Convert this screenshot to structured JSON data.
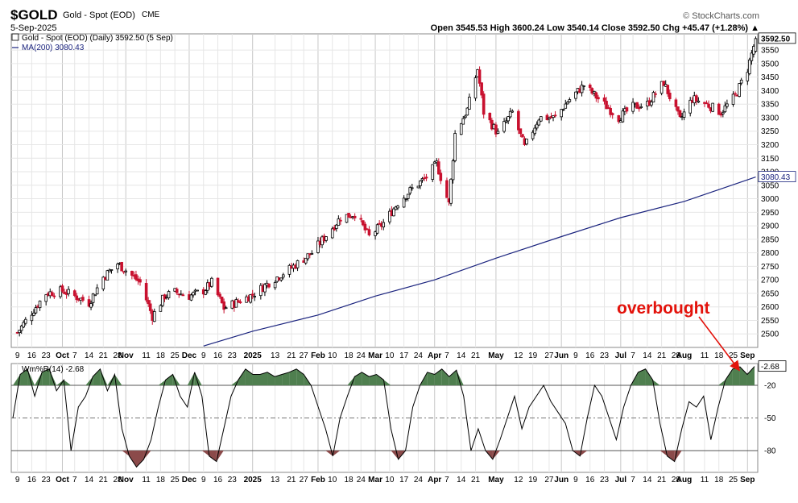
{
  "header": {
    "ticker": "$GOLD",
    "company": "Gold - Spot (EOD)",
    "exchange": "CME",
    "date": "5-Sep-2025",
    "brand": "© StockCharts.com",
    "ohlc": "Open 3545.53  High 3600.24  Low 3540.14  Close 3592.50  Chg +45.47 (+1.28%) ▲"
  },
  "legend": {
    "price": "Gold - Spot (EOD) (Daily) 3592.50 (5 Sep)",
    "ma": "MA(200) 3080.43",
    "wr": "Wm%R(14) -2.68"
  },
  "annotation": "overbought",
  "colors": {
    "up": "#000000",
    "down": "#c8102e",
    "ma": "#1a237e",
    "ob_fill": "#4f7f4f",
    "os_fill": "#8b4a4a",
    "arrow": "#e3120b"
  },
  "chart_data": [
    {
      "type": "candlestick",
      "title": "Gold - Spot (EOD) (Daily)",
      "ylim": [
        2450,
        3610
      ],
      "y_ticks": [
        2500,
        2550,
        2600,
        2650,
        2700,
        2750,
        2800,
        2850,
        2900,
        2950,
        3000,
        3050,
        3100,
        3150,
        3200,
        3250,
        3300,
        3350,
        3400,
        3450,
        3500,
        3550
      ],
      "x_tick_labels": [
        "9",
        "16",
        "23",
        "Oct",
        "7",
        "14",
        "21",
        "28",
        "Nov",
        "11",
        "18",
        "25",
        "Dec",
        "9",
        "16",
        "23",
        "2025",
        "13",
        "21",
        "27",
        "Feb",
        "10",
        "18",
        "24",
        "Mar",
        "10",
        "17",
        "24",
        "Apr",
        "7",
        "14",
        "21",
        "May",
        "12",
        "19",
        "27",
        "Jun",
        "9",
        "16",
        "23",
        "Jul",
        "7",
        "14",
        "21",
        "28",
        "Aug",
        "11",
        "18",
        "25",
        "Sep"
      ],
      "last_price": 3592.5,
      "closes_anchor": [
        [
          "2024-09-09",
          2505
        ],
        [
          "2024-09-16",
          2580
        ],
        [
          "2024-09-23",
          2650
        ],
        [
          "2024-10-01",
          2660
        ],
        [
          "2024-10-07",
          2640
        ],
        [
          "2024-10-14",
          2615
        ],
        [
          "2024-10-21",
          2710
        ],
        [
          "2024-10-28",
          2760
        ],
        [
          "2024-11-01",
          2735
        ],
        [
          "2024-11-08",
          2690
        ],
        [
          "2024-11-14",
          2565
        ],
        [
          "2024-11-20",
          2640
        ],
        [
          "2024-11-25",
          2655
        ],
        [
          "2024-12-02",
          2640
        ],
        [
          "2024-12-09",
          2660
        ],
        [
          "2024-12-13",
          2690
        ],
        [
          "2024-12-19",
          2595
        ],
        [
          "2024-12-26",
          2620
        ],
        [
          "2025-01-02",
          2645
        ],
        [
          "2025-01-10",
          2690
        ],
        [
          "2025-01-21",
          2745
        ],
        [
          "2025-01-31",
          2800
        ],
        [
          "2025-02-07",
          2865
        ],
        [
          "2025-02-14",
          2930
        ],
        [
          "2025-02-21",
          2945
        ],
        [
          "2025-02-28",
          2860
        ],
        [
          "2025-03-07",
          2910
        ],
        [
          "2025-03-14",
          2985
        ],
        [
          "2025-03-20",
          3030
        ],
        [
          "2025-03-28",
          3080
        ],
        [
          "2025-04-02",
          3130
        ],
        [
          "2025-04-08",
          2980
        ],
        [
          "2025-04-11",
          3240
        ],
        [
          "2025-04-17",
          3330
        ],
        [
          "2025-04-22",
          3480
        ],
        [
          "2025-04-25",
          3320
        ],
        [
          "2025-05-02",
          3240
        ],
        [
          "2025-05-09",
          3320
        ],
        [
          "2025-05-15",
          3190
        ],
        [
          "2025-05-22",
          3300
        ],
        [
          "2025-05-30",
          3300
        ],
        [
          "2025-06-05",
          3360
        ],
        [
          "2025-06-13",
          3420
        ],
        [
          "2025-06-20",
          3370
        ],
        [
          "2025-06-30",
          3300
        ],
        [
          "2025-07-07",
          3340
        ],
        [
          "2025-07-14",
          3350
        ],
        [
          "2025-07-22",
          3430
        ],
        [
          "2025-07-30",
          3290
        ],
        [
          "2025-08-05",
          3370
        ],
        [
          "2025-08-12",
          3350
        ],
        [
          "2025-08-19",
          3320
        ],
        [
          "2025-08-26",
          3380
        ],
        [
          "2025-09-01",
          3480
        ],
        [
          "2025-09-05",
          3592.5
        ]
      ]
    },
    {
      "type": "line",
      "name": "MA(200)",
      "last_value": 3080.43,
      "points": [
        [
          "2024-12-09",
          2455
        ],
        [
          "2025-01-02",
          2510
        ],
        [
          "2025-02-03",
          2570
        ],
        [
          "2025-03-03",
          2640
        ],
        [
          "2025-04-01",
          2700
        ],
        [
          "2025-05-01",
          2780
        ],
        [
          "2025-06-02",
          2860
        ],
        [
          "2025-07-01",
          2930
        ],
        [
          "2025-08-01",
          2990
        ],
        [
          "2025-09-05",
          3080.43
        ]
      ]
    },
    {
      "type": "line",
      "name": "Wm%R(14)",
      "ylim": [
        -100,
        0
      ],
      "y_ticks": [
        -20,
        -50,
        -80
      ],
      "overbought_level": -20,
      "oversold_level": -80,
      "last_value": -2.68,
      "values": [
        -50,
        -10,
        -5,
        -30,
        -8,
        -5,
        -25,
        -15,
        -80,
        -40,
        -30,
        -12,
        -5,
        -25,
        -10,
        -60,
        -85,
        -95,
        -88,
        -70,
        -40,
        -15,
        -10,
        -30,
        -40,
        -8,
        -30,
        -85,
        -90,
        -60,
        -30,
        -15,
        -5,
        -10,
        -10,
        -8,
        -12,
        -10,
        -8,
        -5,
        -10,
        -20,
        -40,
        -60,
        -85,
        -50,
        -30,
        -12,
        -8,
        -12,
        -10,
        -15,
        -60,
        -88,
        -80,
        -40,
        -20,
        -8,
        -10,
        -5,
        -12,
        -6,
        -30,
        -80,
        -60,
        -80,
        -88,
        -70,
        -50,
        -30,
        -60,
        -40,
        -30,
        -20,
        -35,
        -45,
        -55,
        -80,
        -85,
        -50,
        -20,
        -30,
        -50,
        -70,
        -40,
        -20,
        -8,
        -5,
        -15,
        -55,
        -85,
        -90,
        -60,
        -35,
        -40,
        -30,
        -70,
        -40,
        -15,
        -5,
        -3,
        -10,
        -2.68
      ]
    }
  ]
}
